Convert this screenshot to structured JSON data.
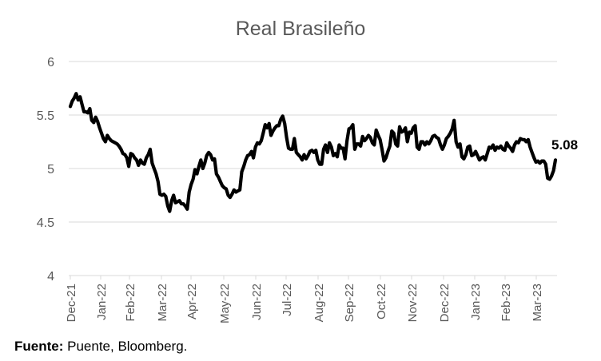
{
  "source": {
    "label": "Fuente:",
    "text": " Puente, Bloomberg."
  },
  "chart_data": {
    "type": "line",
    "title": "Real Brasileño",
    "xlabel": "",
    "ylabel": "",
    "ylim": [
      4,
      6
    ],
    "yticks": [
      "4",
      "4.5",
      "5",
      "5.5",
      "6"
    ],
    "grid": true,
    "legend": "none",
    "line_color": "#000000",
    "end_label": "5.08",
    "x_tick_labels": [
      "Dec-21",
      "Jan-22",
      "Feb-22",
      "Mar-22",
      "Apr-22",
      "May-22",
      "Jun-22",
      "Jul-22",
      "Aug-22",
      "Sep-22",
      "Oct-22",
      "Nov-22",
      "Dec-22",
      "Jan-23",
      "Feb-23",
      "Mar-23"
    ],
    "series": [
      {
        "values": [
          5.58,
          5.63,
          5.66,
          5.7,
          5.64,
          5.67,
          5.6,
          5.53,
          5.53,
          5.52,
          5.56,
          5.45,
          5.43,
          5.48,
          5.44,
          5.38,
          5.33,
          5.28,
          5.25,
          5.31,
          5.28,
          5.26,
          5.25,
          5.24,
          5.23,
          5.21,
          5.18,
          5.14,
          5.13,
          5.1,
          5.02,
          5.14,
          5.13,
          5.1,
          5.08,
          5.03,
          5.08,
          5.05,
          5.04,
          5.1,
          5.13,
          5.18,
          5.05,
          5.0,
          4.95,
          4.88,
          4.76,
          4.75,
          4.76,
          4.74,
          4.65,
          4.6,
          4.7,
          4.75,
          4.68,
          4.69,
          4.7,
          4.67,
          4.67,
          4.65,
          4.62,
          4.78,
          4.85,
          4.9,
          4.99,
          4.95,
          5.02,
          5.08,
          5.0,
          5.05,
          5.12,
          5.15,
          5.13,
          5.08,
          5.09,
          4.95,
          4.92,
          4.88,
          4.84,
          4.82,
          4.81,
          4.75,
          4.73,
          4.76,
          4.8,
          4.78,
          4.79,
          4.8,
          4.97,
          5.02,
          5.08,
          5.12,
          5.13,
          5.16,
          5.1,
          5.2,
          5.24,
          5.23,
          5.26,
          5.33,
          5.41,
          5.38,
          5.42,
          5.31,
          5.35,
          5.38,
          5.4,
          5.4,
          5.46,
          5.49,
          5.42,
          5.29,
          5.19,
          5.18,
          5.18,
          5.28,
          5.15,
          5.13,
          5.11,
          5.08,
          5.13,
          5.09,
          5.12,
          5.16,
          5.17,
          5.15,
          5.17,
          5.08,
          5.04,
          5.04,
          5.18,
          5.22,
          5.15,
          5.24,
          5.2,
          5.12,
          5.14,
          5.11,
          5.22,
          5.19,
          5.19,
          5.09,
          5.26,
          5.37,
          5.38,
          5.41,
          5.18,
          5.23,
          5.23,
          5.21,
          5.3,
          5.26,
          5.28,
          5.31,
          5.29,
          5.24,
          5.22,
          5.36,
          5.31,
          5.27,
          5.18,
          5.07,
          5.1,
          5.16,
          5.21,
          5.35,
          5.33,
          5.23,
          5.21,
          5.39,
          5.34,
          5.35,
          5.38,
          5.25,
          5.34,
          5.33,
          5.38,
          5.4,
          5.2,
          5.18,
          5.25,
          5.25,
          5.22,
          5.25,
          5.23,
          5.26,
          5.3,
          5.31,
          5.29,
          5.28,
          5.22,
          5.18,
          5.22,
          5.28,
          5.3,
          5.33,
          5.37,
          5.45,
          5.25,
          5.2,
          5.23,
          5.11,
          5.09,
          5.13,
          5.2,
          5.21,
          5.12,
          5.13,
          5.16,
          5.12,
          5.08,
          5.1,
          5.11,
          5.08,
          5.14,
          5.2,
          5.19,
          5.22,
          5.17,
          5.2,
          5.19,
          5.21,
          5.18,
          5.17,
          5.24,
          5.21,
          5.19,
          5.16,
          5.22,
          5.25,
          5.24,
          5.28,
          5.27,
          5.27,
          5.25,
          5.27,
          5.2,
          5.15,
          5.1,
          5.06,
          5.07,
          5.05,
          5.07,
          5.07,
          5.04,
          4.91,
          4.9,
          4.93,
          4.98,
          5.08
        ]
      }
    ]
  }
}
